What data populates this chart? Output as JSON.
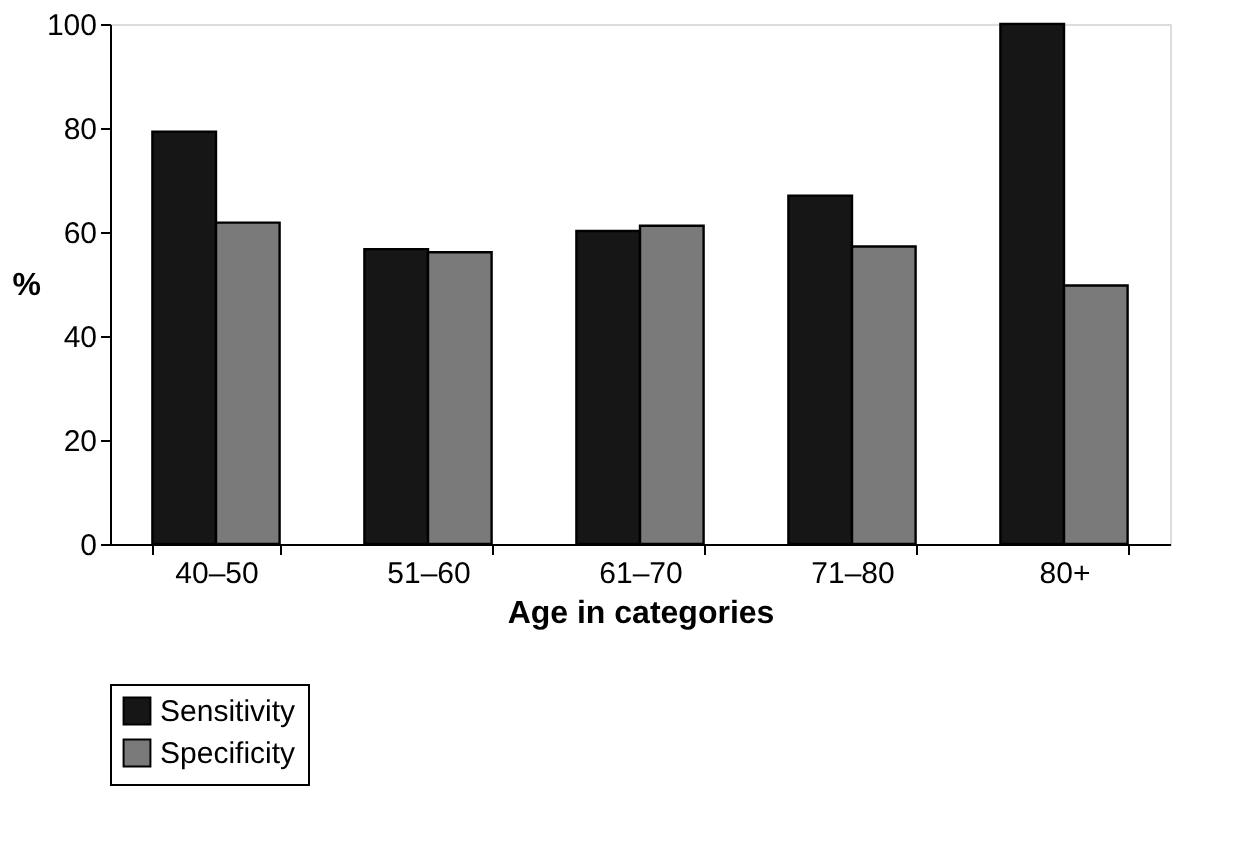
{
  "chart_data": {
    "type": "bar",
    "xlabel": "Age in categories",
    "ylabel": "%",
    "categories": [
      "40–50",
      "51–60",
      "61–70",
      "71–80",
      "80+"
    ],
    "series": [
      {
        "name": "Sensitivity",
        "color": "#161616",
        "values": [
          79.3,
          56.7,
          60.2,
          67,
          100
        ]
      },
      {
        "name": "Specificity",
        "color": "#7a7a7a",
        "values": [
          61.8,
          56.1,
          61.2,
          57.2,
          49.7
        ]
      }
    ],
    "ylim": [
      0,
      100
    ],
    "yticks": [
      0,
      20,
      40,
      60,
      80,
      100
    ],
    "grid": false,
    "legend": "bottom"
  }
}
